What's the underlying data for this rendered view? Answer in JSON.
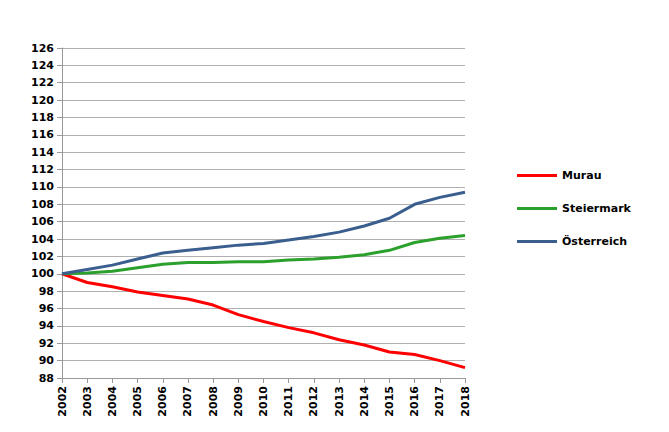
{
  "chart_data": {
    "type": "line",
    "categories": [
      "2002",
      "2003",
      "2004",
      "2005",
      "2006",
      "2007",
      "2008",
      "2009",
      "2010",
      "2011",
      "2012",
      "2013",
      "2014",
      "2015",
      "2016",
      "2017",
      "2018"
    ],
    "series": [
      {
        "name": "Murau",
        "color": "#ff0000",
        "values": [
          100,
          99.0,
          98.5,
          97.9,
          97.5,
          97.1,
          96.4,
          95.3,
          94.5,
          93.8,
          93.2,
          92.4,
          91.8,
          91.0,
          90.7,
          90.0,
          89.2
        ]
      },
      {
        "name": "Steiermark",
        "color": "#2ca02c",
        "values": [
          100,
          100.1,
          100.3,
          100.7,
          101.1,
          101.3,
          101.3,
          101.4,
          101.4,
          101.6,
          101.7,
          101.9,
          102.2,
          102.7,
          103.6,
          104.1,
          104.4
        ]
      },
      {
        "name": "Österreich",
        "color": "#3a5f8f",
        "values": [
          100,
          100.5,
          101.0,
          101.7,
          102.4,
          102.7,
          103.0,
          103.3,
          103.5,
          103.9,
          104.3,
          104.8,
          105.5,
          106.4,
          108.0,
          108.8,
          109.4
        ]
      }
    ],
    "ylim": [
      88,
      126
    ],
    "yticks": [
      88,
      90,
      92,
      94,
      96,
      98,
      100,
      102,
      104,
      106,
      108,
      110,
      112,
      114,
      116,
      118,
      120,
      122,
      124,
      126
    ],
    "grid": true,
    "legend": "right"
  }
}
